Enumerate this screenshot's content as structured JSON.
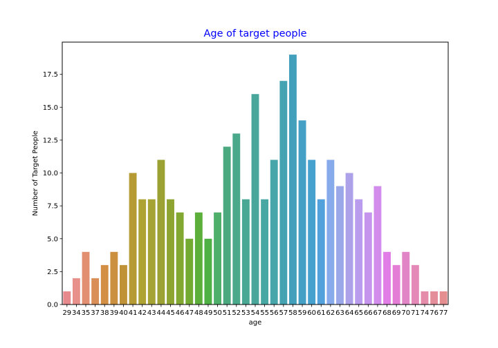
{
  "chart_data": {
    "type": "bar",
    "title": "Age of target people",
    "xlabel": "age",
    "ylabel": "Number of Target People",
    "ylim": [
      0,
      20
    ],
    "yticks": [
      "0.0",
      "2.5",
      "5.0",
      "7.5",
      "10.0",
      "12.5",
      "15.0",
      "17.5"
    ],
    "categories": [
      "29",
      "34",
      "35",
      "37",
      "38",
      "39",
      "40",
      "41",
      "42",
      "43",
      "44",
      "45",
      "46",
      "47",
      "48",
      "49",
      "50",
      "51",
      "52",
      "53",
      "54",
      "55",
      "56",
      "57",
      "58",
      "59",
      "60",
      "61",
      "62",
      "63",
      "64",
      "65",
      "66",
      "67",
      "68",
      "69",
      "70",
      "71",
      "74",
      "76",
      "77"
    ],
    "values": [
      1,
      2,
      4,
      2,
      3,
      4,
      3,
      10,
      8,
      8,
      11,
      8,
      7,
      5,
      7,
      5,
      7,
      12,
      13,
      8,
      16,
      8,
      11,
      17,
      19,
      14,
      11,
      8,
      11,
      9,
      10,
      8,
      7,
      9,
      4,
      3,
      4,
      3,
      1,
      1,
      1
    ],
    "colors": [
      "#e78a8d",
      "#e8908a",
      "#e18f70",
      "#d98f57",
      "#d38f43",
      "#cb9140",
      "#c09237",
      "#b69a33",
      "#aea233",
      "#a5a334",
      "#9ba233",
      "#8ea431",
      "#83a831",
      "#73ab32",
      "#5daf3b",
      "#4fb044",
      "#4eaf6b",
      "#4ba980",
      "#4aa88b",
      "#48a893",
      "#48a69b",
      "#47a7a2",
      "#47a6aa",
      "#45a3b2",
      "#42a0bd",
      "#44a0c5",
      "#47a1cf",
      "#52a1dd",
      "#86aaea",
      "#9aa8ea",
      "#ada2ea",
      "#b99ced",
      "#c595ed",
      "#d18cec",
      "#e17de6",
      "#e37dd6",
      "#e285c6",
      "#e489b8",
      "#e48ca9",
      "#e48e9b",
      "#e48e90"
    ],
    "title_color": "#0000ff",
    "grid": false
  }
}
